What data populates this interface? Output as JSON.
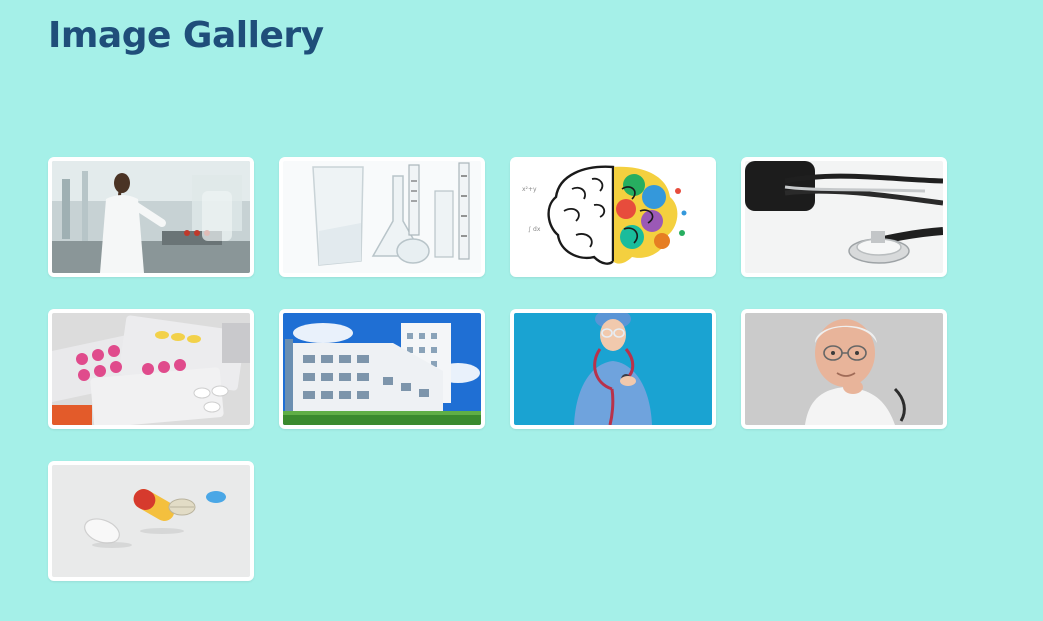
{
  "page": {
    "title": "Image Gallery",
    "background_color": "#a5f0e8",
    "title_color": "#1f4e7a"
  },
  "gallery": {
    "images": [
      {
        "subject": "laboratory-scientist"
      },
      {
        "subject": "lab-glassware"
      },
      {
        "subject": "colorful-brain"
      },
      {
        "subject": "stethoscope"
      },
      {
        "subject": "pill-blister-packs"
      },
      {
        "subject": "hospital-building"
      },
      {
        "subject": "nurse-with-stethoscope"
      },
      {
        "subject": "senior-doctor"
      },
      {
        "subject": "capsules-and-pills"
      }
    ]
  }
}
